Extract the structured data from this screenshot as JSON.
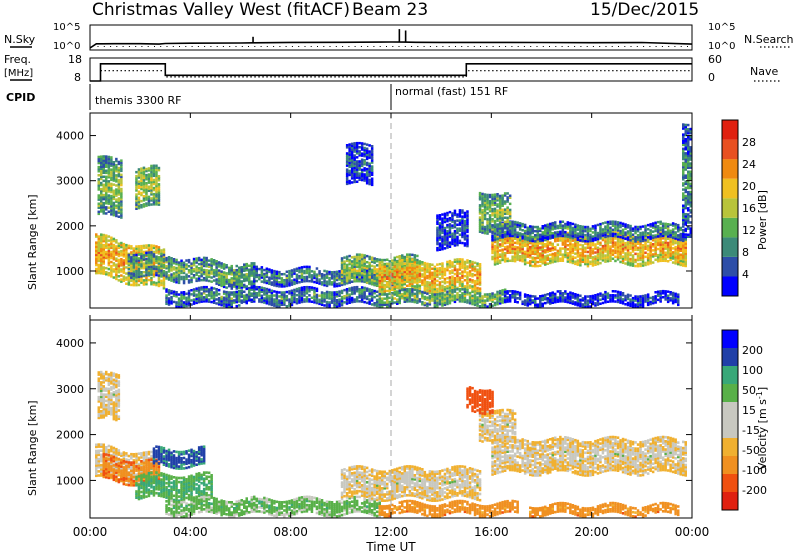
{
  "header": {
    "title": "Christmas Valley West (fitACF)",
    "beam": "Beam 23",
    "date": "15/Dec/2015"
  },
  "colors": {
    "power_scale": [
      "#0000ff",
      "#2d4ea8",
      "#3c8a78",
      "#58b050",
      "#b8c43a",
      "#f0c020",
      "#f08a10",
      "#e85020",
      "#e02010"
    ],
    "velocity_scale": [
      "#e02010",
      "#f05010",
      "#f09020",
      "#f0b030",
      "#c8c8c0",
      "#c8c8c0",
      "#58b048",
      "#38a878",
      "#2040a8",
      "#0000ff"
    ]
  },
  "chart_data": [
    {
      "type": "line",
      "title": "",
      "ylabel": "N.Sky",
      "y2label": "N.Search",
      "yticks": [
        "10^5",
        "10^0"
      ],
      "y2ticks": [
        "10^5",
        "10^0"
      ],
      "x": [
        "00:00",
        "00:15",
        "00:30",
        "01:00",
        "02:00",
        "02:45",
        "03:00",
        "04:00",
        "06:00",
        "06:30",
        "08:00",
        "10:00",
        "12:00",
        "12:30",
        "13:00",
        "14:00",
        "16:00",
        "18:00",
        "20:00",
        "22:00",
        "24:00"
      ],
      "values": [
        0.0,
        0.6,
        0.6,
        0.62,
        0.62,
        0.55,
        0.65,
        0.68,
        0.72,
        0.75,
        0.8,
        0.82,
        0.85,
        0.84,
        0.82,
        0.8,
        0.8,
        0.78,
        0.76,
        0.78,
        0.55
      ],
      "spikes": [
        {
          "x": "06:30",
          "value": 1.6
        },
        {
          "x": "12:20",
          "value": 2.7
        },
        {
          "x": "12:35",
          "value": 2.5
        }
      ]
    },
    {
      "type": "line",
      "ylabel": "Freq. [MHz]",
      "y2label": "Nave",
      "yticks": [
        "18",
        "8"
      ],
      "y2ticks": [
        "60",
        "0"
      ],
      "ylim": [
        8,
        18
      ],
      "y2lim": [
        0,
        60
      ],
      "series": [
        {
          "x": [
            "00:00",
            "00:25",
            "00:25",
            "03:00",
            "03:00",
            "15:00",
            "15:00",
            "24:00"
          ],
          "values": [
            8,
            8,
            15.5,
            15.5,
            10.5,
            10.5,
            15.5,
            15.5
          ]
        },
        {
          "x": [
            "00:25",
            "03:00",
            "03:00",
            "15:00",
            "15:00",
            "24:00"
          ],
          "values": [
            12.5,
            12.5,
            9.8,
            9.8,
            12.5,
            12.5
          ]
        }
      ]
    },
    {
      "type": "table",
      "ylabel": "CPID",
      "rows": [
        {
          "start": "00:00",
          "label": "themis 3300 RF"
        },
        {
          "start": "12:00",
          "label": "normal (fast) 151 RF"
        }
      ]
    },
    {
      "type": "heatmap",
      "quantity": "Power",
      "ylabel": "Slant Range [km]",
      "ylim": [
        180,
        4500
      ],
      "yticks": [
        1000,
        2000,
        3000,
        4000
      ],
      "colorbar_label": "Power [dB]",
      "colorbar_ticks": [
        4,
        8,
        12,
        16,
        20,
        24,
        28
      ],
      "xlim": [
        0,
        24
      ],
      "regions": [
        {
          "t0": 0.2,
          "t1": 3.0,
          "r0": 900,
          "r1": 1800,
          "v": 22,
          "slope": -120
        },
        {
          "t0": 1.5,
          "t1": 6.5,
          "r0": 900,
          "r1": 1400,
          "v": 13,
          "slope": -60
        },
        {
          "t0": 0.3,
          "t1": 1.3,
          "r0": 2200,
          "r1": 3500,
          "v": 14,
          "slope": 0
        },
        {
          "t0": 1.8,
          "t1": 2.8,
          "r0": 2400,
          "r1": 3300,
          "v": 16,
          "slope": 0
        },
        {
          "t0": 3.0,
          "t1": 11.5,
          "r0": 250,
          "r1": 600,
          "v": 10,
          "slope": 0
        },
        {
          "t0": 6.5,
          "t1": 11.5,
          "r0": 700,
          "r1": 1050,
          "v": 10,
          "slope": 0
        },
        {
          "t0": 10.0,
          "t1": 13.0,
          "r0": 700,
          "r1": 1300,
          "v": 16,
          "slope": 0
        },
        {
          "t0": 11.5,
          "t1": 15.5,
          "r0": 550,
          "r1": 1200,
          "v": 22,
          "slope": 0
        },
        {
          "t0": 11.5,
          "t1": 16.5,
          "r0": 250,
          "r1": 550,
          "v": 14,
          "slope": 0
        },
        {
          "t0": 10.2,
          "t1": 11.2,
          "r0": 2900,
          "r1": 3800,
          "v": 7,
          "slope": 0
        },
        {
          "t0": 13.8,
          "t1": 15.0,
          "r0": 1500,
          "r1": 2300,
          "v": 6,
          "slope": 0
        },
        {
          "t0": 16.0,
          "t1": 23.8,
          "r0": 1150,
          "r1": 1800,
          "v": 22,
          "slope": 0
        },
        {
          "t0": 16.0,
          "t1": 23.8,
          "r0": 1700,
          "r1": 2050,
          "v": 10,
          "slope": 0
        },
        {
          "t0": 15.5,
          "t1": 16.8,
          "r0": 1900,
          "r1": 2800,
          "v": 14,
          "slope": -100
        },
        {
          "t0": 16.5,
          "t1": 23.5,
          "r0": 250,
          "r1": 500,
          "v": 6,
          "slope": 0
        },
        {
          "t0": 23.6,
          "t1": 24.0,
          "r0": 1800,
          "r1": 4300,
          "v": 10,
          "slope": 0
        }
      ]
    },
    {
      "type": "heatmap",
      "quantity": "Velocity",
      "ylabel": "Slant Range [km]",
      "ylim": [
        180,
        4500
      ],
      "yticks": [
        1000,
        2000,
        3000,
        4000
      ],
      "colorbar_label": "Velocity [m s^-1]",
      "colorbar_ticks": [
        -200,
        -100,
        -50,
        -15,
        15,
        50,
        100,
        200
      ],
      "xlim": [
        0,
        24
      ],
      "regions": [
        {
          "t0": 0.2,
          "t1": 2.5,
          "r0": 1050,
          "r1": 1750,
          "v": 0,
          "slope": -80
        },
        {
          "t0": 0.5,
          "t1": 2.8,
          "r0": 1000,
          "r1": 1500,
          "v": -80,
          "slope": -60
        },
        {
          "t0": 1.8,
          "t1": 4.8,
          "r0": 600,
          "r1": 1100,
          "v": 60,
          "slope": 0
        },
        {
          "t0": 2.5,
          "t1": 4.5,
          "r0": 1300,
          "r1": 1700,
          "v": 120,
          "slope": 0
        },
        {
          "t0": 0.3,
          "t1": 1.2,
          "r0": 2300,
          "r1": 3300,
          "v": 0,
          "slope": 0
        },
        {
          "t0": 3.0,
          "t1": 11.5,
          "r0": 250,
          "r1": 600,
          "v": 40,
          "slope": 0
        },
        {
          "t0": 10.0,
          "t1": 15.5,
          "r0": 600,
          "r1": 1250,
          "v": 0,
          "slope": 0
        },
        {
          "t0": 11.5,
          "t1": 17.0,
          "r0": 250,
          "r1": 500,
          "v": -60,
          "slope": 0
        },
        {
          "t0": 16.0,
          "t1": 23.8,
          "r0": 1150,
          "r1": 1900,
          "v": 0,
          "slope": 0
        },
        {
          "t0": 15.5,
          "t1": 17.0,
          "r0": 1900,
          "r1": 2600,
          "v": 0,
          "slope": -100
        },
        {
          "t0": 17.5,
          "t1": 23.5,
          "r0": 250,
          "r1": 450,
          "v": -60,
          "slope": 0
        },
        {
          "t0": 15.0,
          "t1": 16.0,
          "r0": 2500,
          "r1": 3000,
          "v": -150,
          "slope": 0
        }
      ]
    }
  ],
  "xaxis": {
    "label": "Time UT",
    "ticks": [
      "00:00",
      "04:00",
      "08:00",
      "12:00",
      "16:00",
      "20:00",
      "00:00"
    ]
  }
}
